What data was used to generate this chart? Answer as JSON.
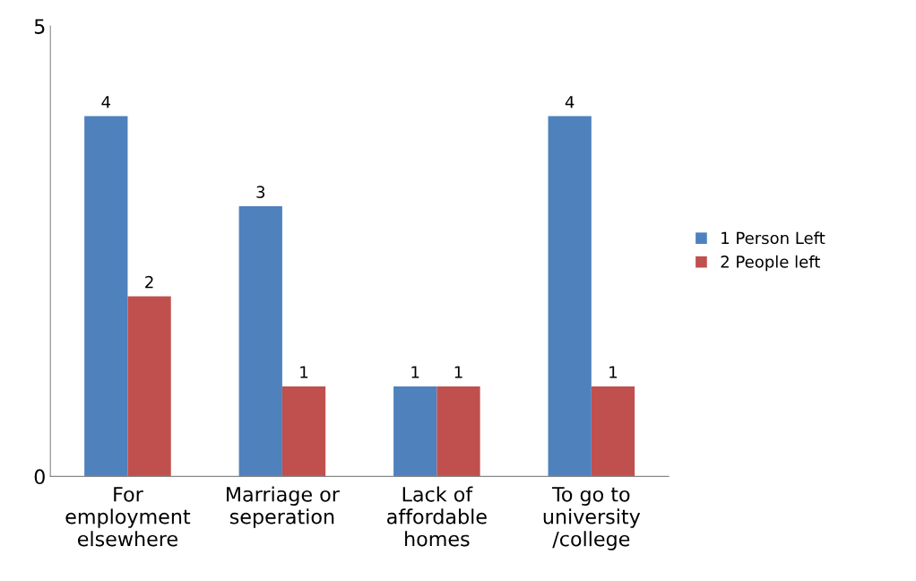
{
  "chart_data": {
    "type": "bar",
    "categories": [
      "For\nemployment\nelsewhere",
      "Marriage or\nseperation",
      "Lack of\naffordable\nhomes",
      "To go to\nuniversity\n/college"
    ],
    "series": [
      {
        "name": "1 Person Left",
        "color": "#4f81bd",
        "values": [
          4,
          3,
          1,
          4
        ]
      },
      {
        "name": "2 People left",
        "color": "#c0504d",
        "values": [
          2,
          1,
          1,
          1
        ]
      }
    ],
    "ylim": [
      0,
      5
    ],
    "yticks": [
      0,
      5
    ],
    "data_labels": true,
    "grid": false,
    "legend": "right"
  }
}
